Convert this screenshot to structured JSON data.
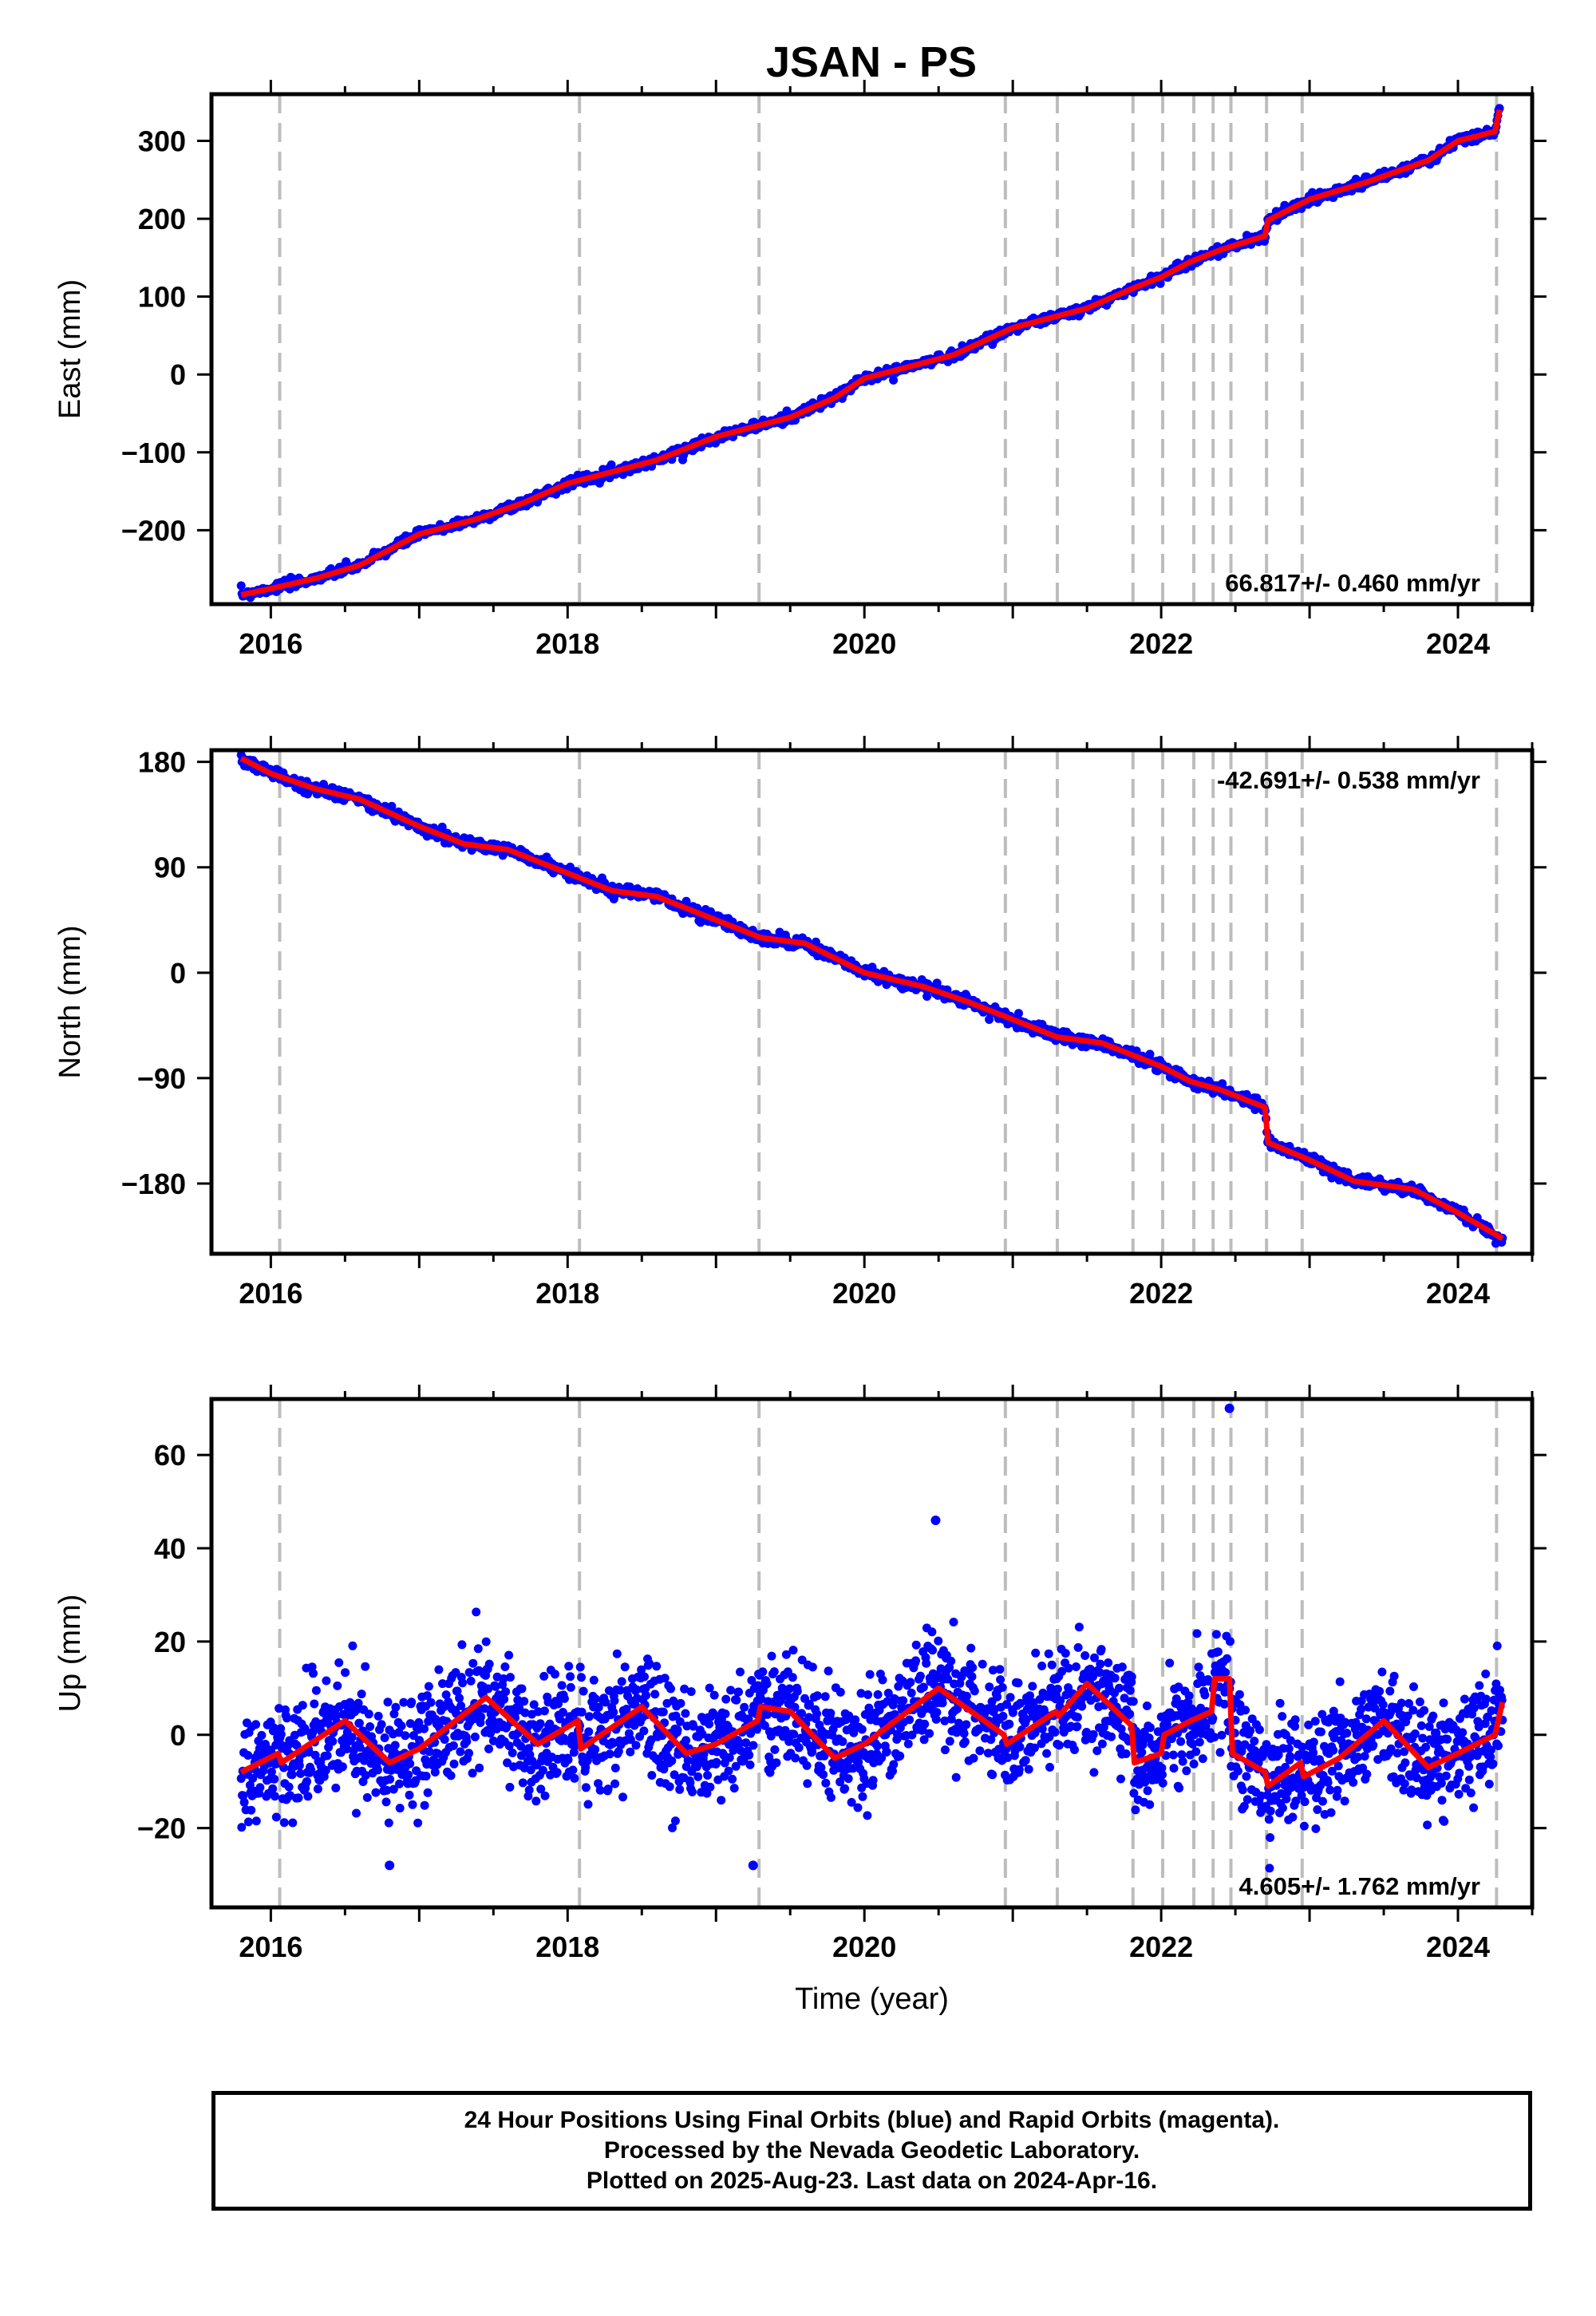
{
  "title": "JSAN - PS",
  "footer": {
    "line1": "24 Hour Positions Using Final Orbits (blue) and Rapid Orbits (magenta).",
    "line2": "Processed by the Nevada Geodetic Laboratory.",
    "line3": "Plotted on 2025-Aug-23. Last data on 2024-Apr-16."
  },
  "chart_data": [
    {
      "type": "scatter",
      "ylabel": "East (mm)",
      "xlabel": "",
      "xlim": [
        2015.6,
        2024.5
      ],
      "ylim": [
        -295,
        360
      ],
      "x_ticks": [
        2016,
        2018,
        2020,
        2022,
        2024
      ],
      "y_ticks": [
        -200,
        -100,
        0,
        100,
        200,
        300
      ],
      "y_tick_labels": [
        "−200",
        "−100",
        "0",
        "100",
        "200",
        "300"
      ],
      "rate_label": "66.817+/- 0.460 mm/yr",
      "rate_position": "bottom-right",
      "vertical_dashed_lines": [
        2016.06,
        2018.08,
        2019.29,
        2020.95,
        2021.3,
        2021.81,
        2022.01,
        2022.22,
        2022.35,
        2022.47,
        2022.71,
        2022.95,
        2024.26
      ],
      "points_color": "#0000ff",
      "model_color": "#ff0000",
      "scatter_noise": 3,
      "series": [
        {
          "name": "",
          "x": [
            2015.8,
            2016.0,
            2016.3,
            2016.6,
            2017.0,
            2017.4,
            2017.7,
            2018.0,
            2018.3,
            2018.6,
            2019.0,
            2019.5,
            2019.8,
            2020.0,
            2020.3,
            2020.6,
            2021.0,
            2021.3,
            2021.5,
            2021.8,
            2022.0,
            2022.2,
            2022.4,
            2022.6,
            2022.7,
            2022.72,
            2023.0,
            2023.4,
            2023.8,
            2024.0,
            2024.25,
            2024.28
          ],
          "y": [
            -283,
            -275,
            -262,
            -245,
            -205,
            -185,
            -165,
            -140,
            -125,
            -110,
            -80,
            -55,
            -30,
            -5,
            10,
            25,
            60,
            75,
            85,
            110,
            125,
            145,
            160,
            172,
            178,
            198,
            225,
            248,
            275,
            300,
            312,
            340
          ]
        }
      ]
    },
    {
      "type": "scatter",
      "ylabel": "North (mm)",
      "xlabel": "",
      "xlim": [
        2015.6,
        2024.5
      ],
      "ylim": [
        -240,
        190
      ],
      "x_ticks": [
        2016,
        2018,
        2020,
        2022,
        2024
      ],
      "y_ticks": [
        -180,
        -90,
        0,
        90,
        180
      ],
      "y_tick_labels": [
        "−180",
        "−90",
        "0",
        "90",
        "180"
      ],
      "rate_label": "-42.691+/- 0.538 mm/yr",
      "rate_position": "top-right",
      "vertical_dashed_lines": [
        2016.06,
        2018.08,
        2019.29,
        2020.95,
        2021.3,
        2021.81,
        2022.01,
        2022.22,
        2022.35,
        2022.47,
        2022.71,
        2022.95,
        2024.26
      ],
      "points_color": "#0000ff",
      "model_color": "#ff0000",
      "scatter_noise": 2.5,
      "series": [
        {
          "name": "",
          "x": [
            2015.8,
            2016.0,
            2016.3,
            2016.6,
            2017.0,
            2017.3,
            2017.6,
            2018.0,
            2018.3,
            2018.6,
            2019.0,
            2019.3,
            2019.6,
            2020.0,
            2020.4,
            2020.7,
            2021.0,
            2021.3,
            2021.6,
            2021.8,
            2022.0,
            2022.2,
            2022.4,
            2022.6,
            2022.7,
            2022.72,
            2023.0,
            2023.3,
            2023.7,
            2024.0,
            2024.3
          ],
          "y": [
            183,
            170,
            157,
            148,
            125,
            110,
            105,
            85,
            70,
            65,
            45,
            30,
            25,
            0,
            -12,
            -25,
            -40,
            -55,
            -60,
            -70,
            -80,
            -93,
            -100,
            -110,
            -115,
            -145,
            -160,
            -178,
            -185,
            -205,
            -227
          ]
        }
      ]
    },
    {
      "type": "scatter",
      "ylabel": "Up (mm)",
      "xlabel": "Time (year)",
      "xlim": [
        2015.6,
        2024.5
      ],
      "ylim": [
        -37,
        72
      ],
      "x_ticks": [
        2016,
        2018,
        2020,
        2022,
        2024
      ],
      "y_ticks": [
        -20,
        0,
        20,
        40,
        60
      ],
      "y_tick_labels": [
        "−20",
        "0",
        "20",
        "40",
        "60"
      ],
      "rate_label": "4.605+/- 1.762 mm/yr",
      "rate_position": "bottom-right",
      "vertical_dashed_lines": [
        2016.06,
        2018.08,
        2019.29,
        2020.95,
        2021.3,
        2021.81,
        2022.01,
        2022.22,
        2022.35,
        2022.47,
        2022.71,
        2022.95,
        2024.26
      ],
      "points_color": "#0000ff",
      "model_color": "#ff0000",
      "scatter_noise": 6,
      "series": [
        {
          "name": "",
          "x": [
            2015.8,
            2016.05,
            2016.07,
            2016.5,
            2016.8,
            2017.0,
            2017.45,
            2017.8,
            2018.07,
            2018.09,
            2018.5,
            2018.8,
            2019.0,
            2019.28,
            2019.3,
            2019.5,
            2019.8,
            2020.0,
            2020.5,
            2020.94,
            2020.96,
            2021.29,
            2021.31,
            2021.5,
            2021.8,
            2021.82,
            2022.0,
            2022.02,
            2022.2,
            2022.34,
            2022.36,
            2022.46,
            2022.48,
            2022.7,
            2022.72,
            2022.94,
            2022.96,
            2023.2,
            2023.5,
            2023.8,
            2024.0,
            2024.25,
            2024.3
          ],
          "y": [
            -8,
            -4,
            -6,
            3,
            -6,
            -3,
            8,
            -2,
            3,
            -3,
            6,
            -4,
            -2,
            3,
            6,
            5,
            -5,
            -2,
            10,
            0,
            -2,
            5,
            4,
            11,
            2,
            -6,
            -4,
            0,
            3,
            5,
            12,
            12,
            -4,
            -8,
            -11,
            -6,
            -9,
            -5,
            3,
            -7,
            -4,
            0,
            7
          ]
        },
        {
          "name": "",
          "x": [
            2022.46,
            2020.48,
            2016.8,
            2019.25
          ],
          "y": [
            70,
            46,
            -28,
            -28
          ]
        }
      ]
    }
  ]
}
